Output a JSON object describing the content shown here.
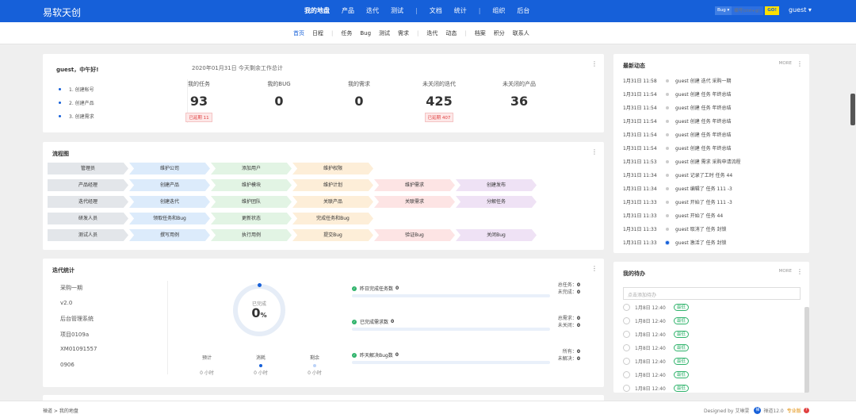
{
  "header": {
    "brand": "易软天创",
    "nav": [
      {
        "label": "我的地盘",
        "active": true
      },
      {
        "label": "产品"
      },
      {
        "label": "迭代"
      },
      {
        "label": "测试"
      },
      {
        "sep": true
      },
      {
        "label": "文档"
      },
      {
        "label": "统计"
      },
      {
        "sep": true
      },
      {
        "label": "组织"
      },
      {
        "label": "后台"
      }
    ],
    "search": {
      "type_label": "Bug ▾",
      "placeholder": "编号(ctrl+g)",
      "go": "GO!"
    },
    "user": "guest ▾"
  },
  "subnav": [
    {
      "label": "首页",
      "active": true
    },
    {
      "label": "日程"
    },
    {
      "sep": true
    },
    {
      "label": "任务"
    },
    {
      "label": "Bug"
    },
    {
      "label": "测试"
    },
    {
      "label": "需求"
    },
    {
      "sep": true
    },
    {
      "label": "迭代"
    },
    {
      "label": "动态"
    },
    {
      "sep": true
    },
    {
      "label": "档案"
    },
    {
      "label": "积分"
    },
    {
      "label": "联系人"
    }
  ],
  "welcome": {
    "greeting": "guest，中午好!",
    "date_title": "2020年01月31日   今天剩余工作总计",
    "steps": [
      "1. 创建帐号",
      "2. 创建产品",
      "3. 创建需求"
    ],
    "stats": [
      {
        "label": "我的任务",
        "value": "93",
        "tag": "已延期 11"
      },
      {
        "label": "我的BUG",
        "value": "0",
        "tag": ""
      },
      {
        "label": "我的需求",
        "value": "0",
        "tag": ""
      },
      {
        "label": "未关闭的迭代",
        "value": "425",
        "tag": "已延期 407"
      },
      {
        "label": "未关闭的产品",
        "value": "36",
        "tag": ""
      }
    ],
    "menu_icon": "⋮"
  },
  "flow": {
    "title": "流程图",
    "menu_icon": "⋮",
    "rows": [
      {
        "role": "管理员",
        "steps": [
          {
            "text": "维护公司",
            "color": "blue"
          },
          {
            "text": "添加用户",
            "color": "green"
          },
          {
            "text": "维护权限",
            "color": "orange"
          }
        ]
      },
      {
        "role": "产品经理",
        "steps": [
          {
            "text": "创建产品",
            "color": "blue"
          },
          {
            "text": "维护模块",
            "color": "green"
          },
          {
            "text": "维护计划",
            "color": "orange"
          },
          {
            "text": "维护需求",
            "color": "pink"
          },
          {
            "text": "创建发布",
            "color": "purple"
          }
        ]
      },
      {
        "role": "迭代经理",
        "steps": [
          {
            "text": "创建迭代",
            "color": "blue"
          },
          {
            "text": "维护团队",
            "color": "green"
          },
          {
            "text": "关联产品",
            "color": "orange"
          },
          {
            "text": "关联需求",
            "color": "pink"
          },
          {
            "text": "分解任务",
            "color": "purple"
          }
        ]
      },
      {
        "role": "研发人员",
        "steps": [
          {
            "text": "领取任务和Bug",
            "color": "blue"
          },
          {
            "text": "更新状态",
            "color": "green"
          },
          {
            "text": "完成任务和Bug",
            "color": "orange"
          }
        ]
      },
      {
        "role": "测试人员",
        "steps": [
          {
            "text": "撰写用例",
            "color": "blue"
          },
          {
            "text": "执行用例",
            "color": "green"
          },
          {
            "text": "提交Bug",
            "color": "orange"
          },
          {
            "text": "验证Bug",
            "color": "pink"
          },
          {
            "text": "关闭Bug",
            "color": "purple"
          }
        ]
      }
    ]
  },
  "iteration": {
    "title": "迭代统计",
    "menu_icon": "⋮",
    "list": [
      "采购一期",
      "v2.0",
      "后台管理系统",
      "项目0109a",
      "XM01091557",
      "0906"
    ],
    "ring": {
      "label": "已完成",
      "value": "0",
      "unit": "%"
    },
    "mini": [
      {
        "label": "预计",
        "value": "0 小时",
        "dot": "none"
      },
      {
        "label": "消耗",
        "value": "0 小时",
        "dot": "#1660d9"
      },
      {
        "label": "剩余",
        "value": "0 小时",
        "dot": "#bcd3f7"
      }
    ],
    "progress": [
      {
        "label": "昨日完成任务数",
        "count": "0",
        "side1": "总任务：",
        "side1v": "0",
        "side2": "未完成：",
        "side2v": "0"
      },
      {
        "label": "已完成需求数",
        "count": "0",
        "side1": "总需求：",
        "side1v": "0",
        "side2": "未关闭：",
        "side2v": "0"
      },
      {
        "label": "昨天解决Bug数",
        "count": "0",
        "side1": "所有：",
        "side1v": "0",
        "side2": "未解决：",
        "side2v": "0"
      }
    ]
  },
  "activity": {
    "title": "最新动态",
    "more": "MORE",
    "menu_icon": "⋮",
    "items": [
      {
        "time": "1月31日 11:58",
        "text": "guest 创建 迭代 采购一期"
      },
      {
        "time": "1月31日 11:54",
        "text": "guest 创建 任务 年终总结"
      },
      {
        "time": "1月31日 11:54",
        "text": "guest 创建 任务 年终总结"
      },
      {
        "time": "1月31日 11:54",
        "text": "guest 创建 任务 年终总结"
      },
      {
        "time": "1月31日 11:54",
        "text": "guest 创建 任务 年终总结"
      },
      {
        "time": "1月31日 11:54",
        "text": "guest 创建 任务 年终总结"
      },
      {
        "time": "1月31日 11:53",
        "text": "guest 创建 需求 采购申请流程"
      },
      {
        "time": "1月31日 11:34",
        "text": "guest 记录了工时 任务 44"
      },
      {
        "time": "1月31日 11:34",
        "text": "guest 编辑了 任务 111 -3"
      },
      {
        "time": "1月31日 11:33",
        "text": "guest 开始了 任务 111 -3"
      },
      {
        "time": "1月31日 11:33",
        "text": "guest 开始了 任务 44"
      },
      {
        "time": "1月31日 11:33",
        "text": "guest 取消了 任务 封锁"
      },
      {
        "time": "1月31日 11:33",
        "text": "guest 激活了 任务 封锁",
        "current": true
      }
    ]
  },
  "todo": {
    "title": "我的待办",
    "more": "MORE",
    "menu_icon": "⋮",
    "placeholder": "点击添加待办",
    "items": [
      {
        "time": "1月8日 12:40",
        "priority": "最低"
      },
      {
        "time": "1月8日 12:40",
        "priority": "最低"
      },
      {
        "time": "1月8日 12:40",
        "priority": "最低"
      },
      {
        "time": "1月8日 12:40",
        "priority": "最低"
      },
      {
        "time": "1月8日 12:40",
        "priority": "最低"
      },
      {
        "time": "1月8日 12:40",
        "priority": "最低"
      },
      {
        "time": "1月8日 12:40",
        "priority": "最低"
      }
    ]
  },
  "footer": {
    "crumb": "禅道 >  我的地盘",
    "designed": "Designed by 艾琳雯",
    "logo_text": "禅",
    "version": "禅道12.0",
    "edition": "专业版",
    "upgrade": "?"
  },
  "colors": {
    "brand": "#1660d9",
    "flow_blue": "#dcebfb",
    "flow_green": "#e2f4e4",
    "flow_orange": "#fdeed8",
    "flow_pink": "#fde4e4",
    "flow_purple": "#efe2f5",
    "success": "#2fb36b",
    "danger": "#e04040"
  }
}
